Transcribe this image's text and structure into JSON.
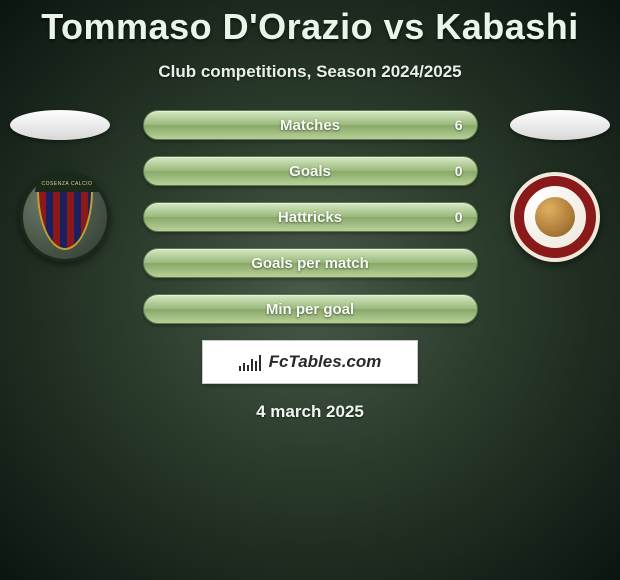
{
  "title": "Tommaso D'Orazio vs Kabashi",
  "subtitle": "Club competitions, Season 2024/2025",
  "date": "4 march 2025",
  "brand": "FcTables.com",
  "crest_left_text": "COSENZA CALCIO",
  "stats": [
    {
      "label": "Matches",
      "value": "6"
    },
    {
      "label": "Goals",
      "value": "0"
    },
    {
      "label": "Hattricks",
      "value": "0"
    },
    {
      "label": "Goals per match",
      "value": ""
    },
    {
      "label": "Min per goal",
      "value": ""
    }
  ],
  "colors": {
    "pill_top": "#d4e8c4",
    "pill_mid": "#9ab87a",
    "pill_bot": "#88a868",
    "crest_left_stripe_a": "#8a1a1a",
    "crest_left_stripe_b": "#1a2060",
    "crest_right_ring": "#8a1a1a"
  },
  "brand_bar_heights": [
    5,
    8,
    6,
    12,
    10,
    16
  ]
}
